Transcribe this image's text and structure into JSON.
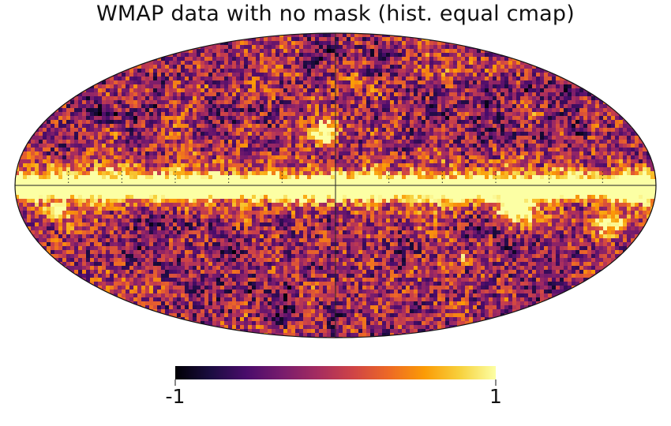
{
  "chart_data": {
    "type": "heatmap",
    "projection": "mollweide",
    "title": "WMAP data with no mask (hist. equal cmap)",
    "colorbar": {
      "min": -1,
      "max": 1,
      "min_label": "-1",
      "max_label": "1",
      "orientation": "horizontal",
      "colormap": "inferno",
      "normalization": "hist. equal"
    },
    "graticule": {
      "meridians_deg": [
        -150,
        -120,
        -90,
        -60,
        -30,
        0,
        30,
        60,
        90,
        120,
        150
      ],
      "central_lines": [
        "equator",
        "prime-meridian"
      ],
      "style": "dotted"
    },
    "colors": {
      "frame": "#111111",
      "colormap_stops": [
        "#000004",
        "#1b0c41",
        "#4a0c6b",
        "#781c6d",
        "#a52c60",
        "#cf4446",
        "#ed6925",
        "#fb9b06",
        "#f7d13d",
        "#fcffa4"
      ]
    }
  }
}
